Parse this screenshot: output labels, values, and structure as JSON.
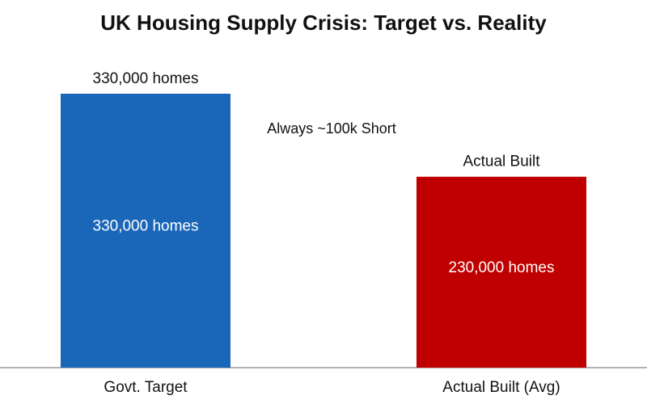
{
  "chart_data": {
    "type": "bar",
    "title": "UK Housing Supply Crisis: Target vs. Reality",
    "categories": [
      "Govt. Target",
      "Actual Built (Avg)"
    ],
    "values": [
      330000,
      230000
    ],
    "value_labels": [
      "330,000 homes",
      "230,000 homes"
    ],
    "bar_headers": [
      "330,000 homes",
      "Actual Built"
    ],
    "colors": [
      "#1a66b8",
      "#c00000"
    ],
    "annotation": "Always ~100k Short"
  }
}
